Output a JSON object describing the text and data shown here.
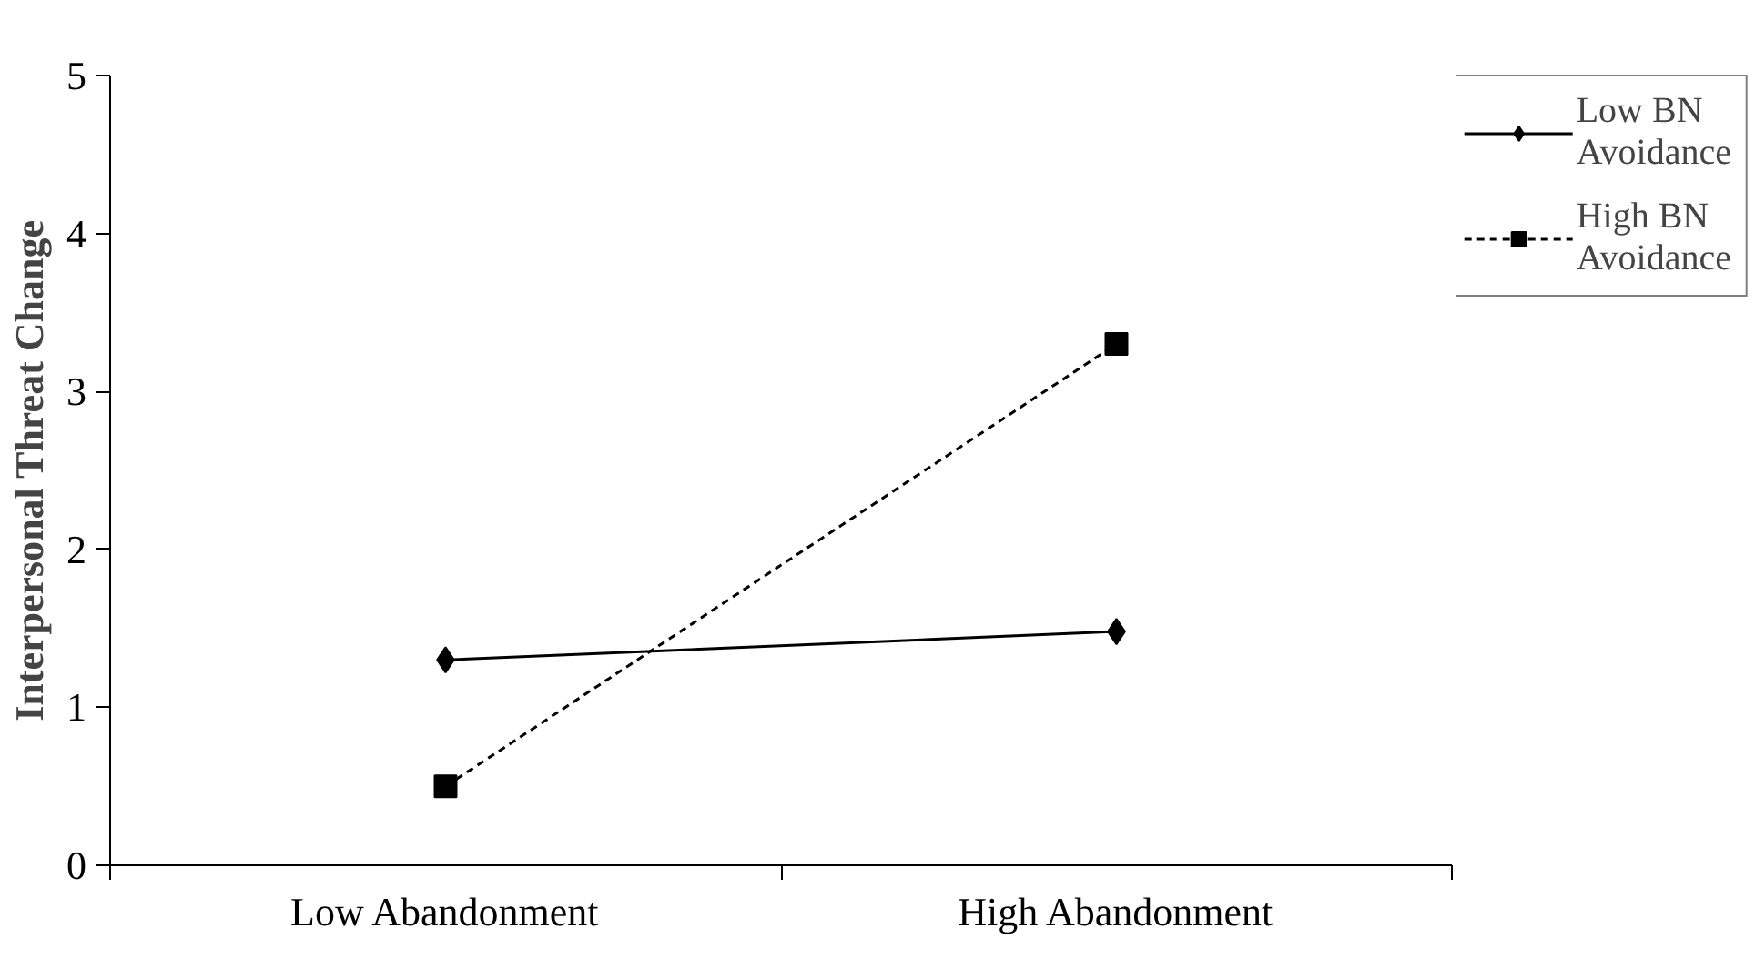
{
  "chart_data": {
    "type": "line",
    "ylabel": "Interpersonal Threat Change",
    "categories": [
      "Low Abandonment",
      "High Abandonment"
    ],
    "series": [
      {
        "name": "Low BN Avoidance",
        "color": "#000000",
        "values": [
          1.3,
          1.48
        ],
        "marker": "diamond",
        "line_style": "solid"
      },
      {
        "name": "High BN Avoidance",
        "color": "#000000",
        "values": [
          0.5,
          3.3
        ],
        "marker": "square",
        "line_style": "dashed"
      }
    ],
    "ylim": [
      0,
      5
    ],
    "yticks": [
      0,
      1,
      2,
      3,
      4,
      5
    ],
    "grid": false,
    "legend": "top right"
  }
}
